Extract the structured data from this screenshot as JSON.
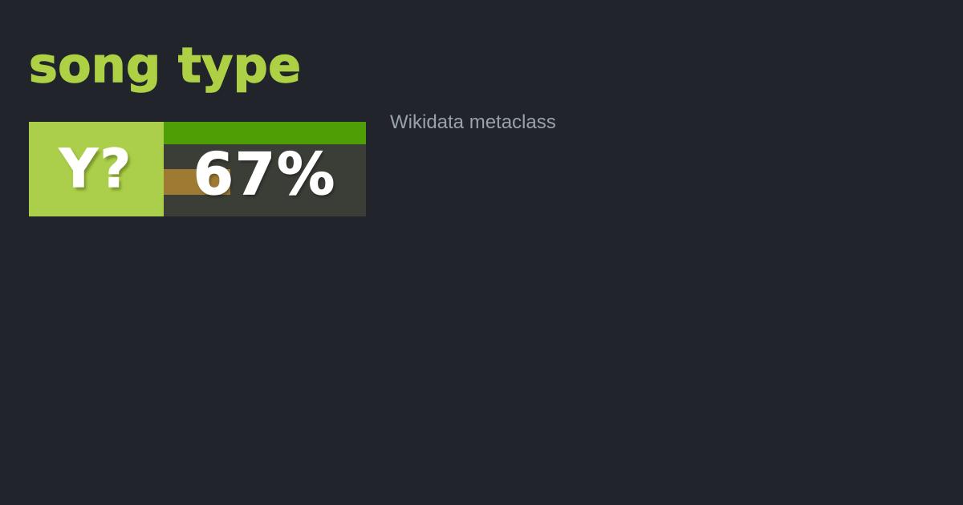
{
  "page": {
    "title": "song type",
    "subtitle": "Wikidata metaclass"
  },
  "badge": {
    "label": "Y?",
    "value": "67%",
    "percent": 67,
    "bars": {
      "top_width_pct": 100,
      "partial_width_pct": 33
    }
  },
  "colors": {
    "page_bg": "#21252b",
    "title_text": "#aed044",
    "badge_label_bg": "#abcf4a",
    "badge_label_text": "#ffffff",
    "badge_panel_bg": "#3a3e36",
    "badge_top_bar": "#4f9e06",
    "badge_partial_bar": "#9e7a33",
    "badge_value_text": "#ffffff",
    "subtitle_text": "#99a2ab"
  }
}
